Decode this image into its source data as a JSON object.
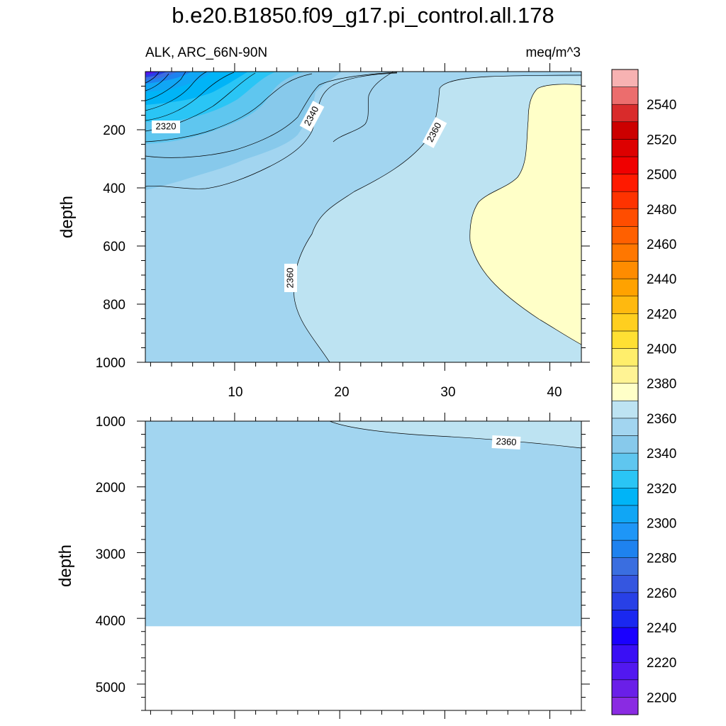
{
  "chart_data": {
    "type": "contour",
    "title": "b.e20.B1850.f09_g17.pi_control.all.178",
    "left_subtitle": "ALK, ARC_66N-90N",
    "right_subtitle": "meq/m^3",
    "upper_panel": {
      "ylabel": "depth",
      "ylim": [
        0,
        1000
      ],
      "yticks": [
        "200",
        "400",
        "600",
        "800",
        "1000"
      ],
      "xlim": [
        1,
        43
      ],
      "xticks": [
        "10",
        "20",
        "30",
        "40"
      ],
      "contour_labels": [
        "2320",
        "2340",
        "2360",
        "2360"
      ]
    },
    "lower_panel": {
      "ylabel": "depth",
      "ylim": [
        1000,
        5400
      ],
      "yticks": [
        "1000",
        "2000",
        "3000",
        "4000",
        "5000"
      ],
      "contour_labels": [
        "2360"
      ],
      "bottom_depth": 4120
    },
    "colorbar": {
      "levels": [
        "2200",
        "2220",
        "2240",
        "2260",
        "2280",
        "2300",
        "2320",
        "2340",
        "2360",
        "2380",
        "2400",
        "2420",
        "2440",
        "2460",
        "2480",
        "2500",
        "2520",
        "2540"
      ],
      "min": 2190,
      "max": 2560,
      "step": 10,
      "colors": [
        "#8a2be2",
        "#6a1fe8",
        "#5218f0",
        "#3a0ff5",
        "#1a00ff",
        "#1a28f0",
        "#2840e6",
        "#3556e0",
        "#3a6ee0",
        "#1e82ef",
        "#1e96f7",
        "#10a6f5",
        "#00b4f7",
        "#2ac5f5",
        "#5fc6ef",
        "#87c9eb",
        "#a2d5f0",
        "#bde3f2",
        "#ffffc8",
        "#fff394",
        "#ffee6b",
        "#ffe033",
        "#ffcf1f",
        "#ffb90f",
        "#ffa200",
        "#ff8c00",
        "#ff7700",
        "#ff6000",
        "#ff4d00",
        "#ff3300",
        "#ff1a00",
        "#f00000",
        "#dd0000",
        "#cc0000",
        "#d92b2b",
        "#ec6d6d",
        "#f7b2b2"
      ]
    }
  }
}
